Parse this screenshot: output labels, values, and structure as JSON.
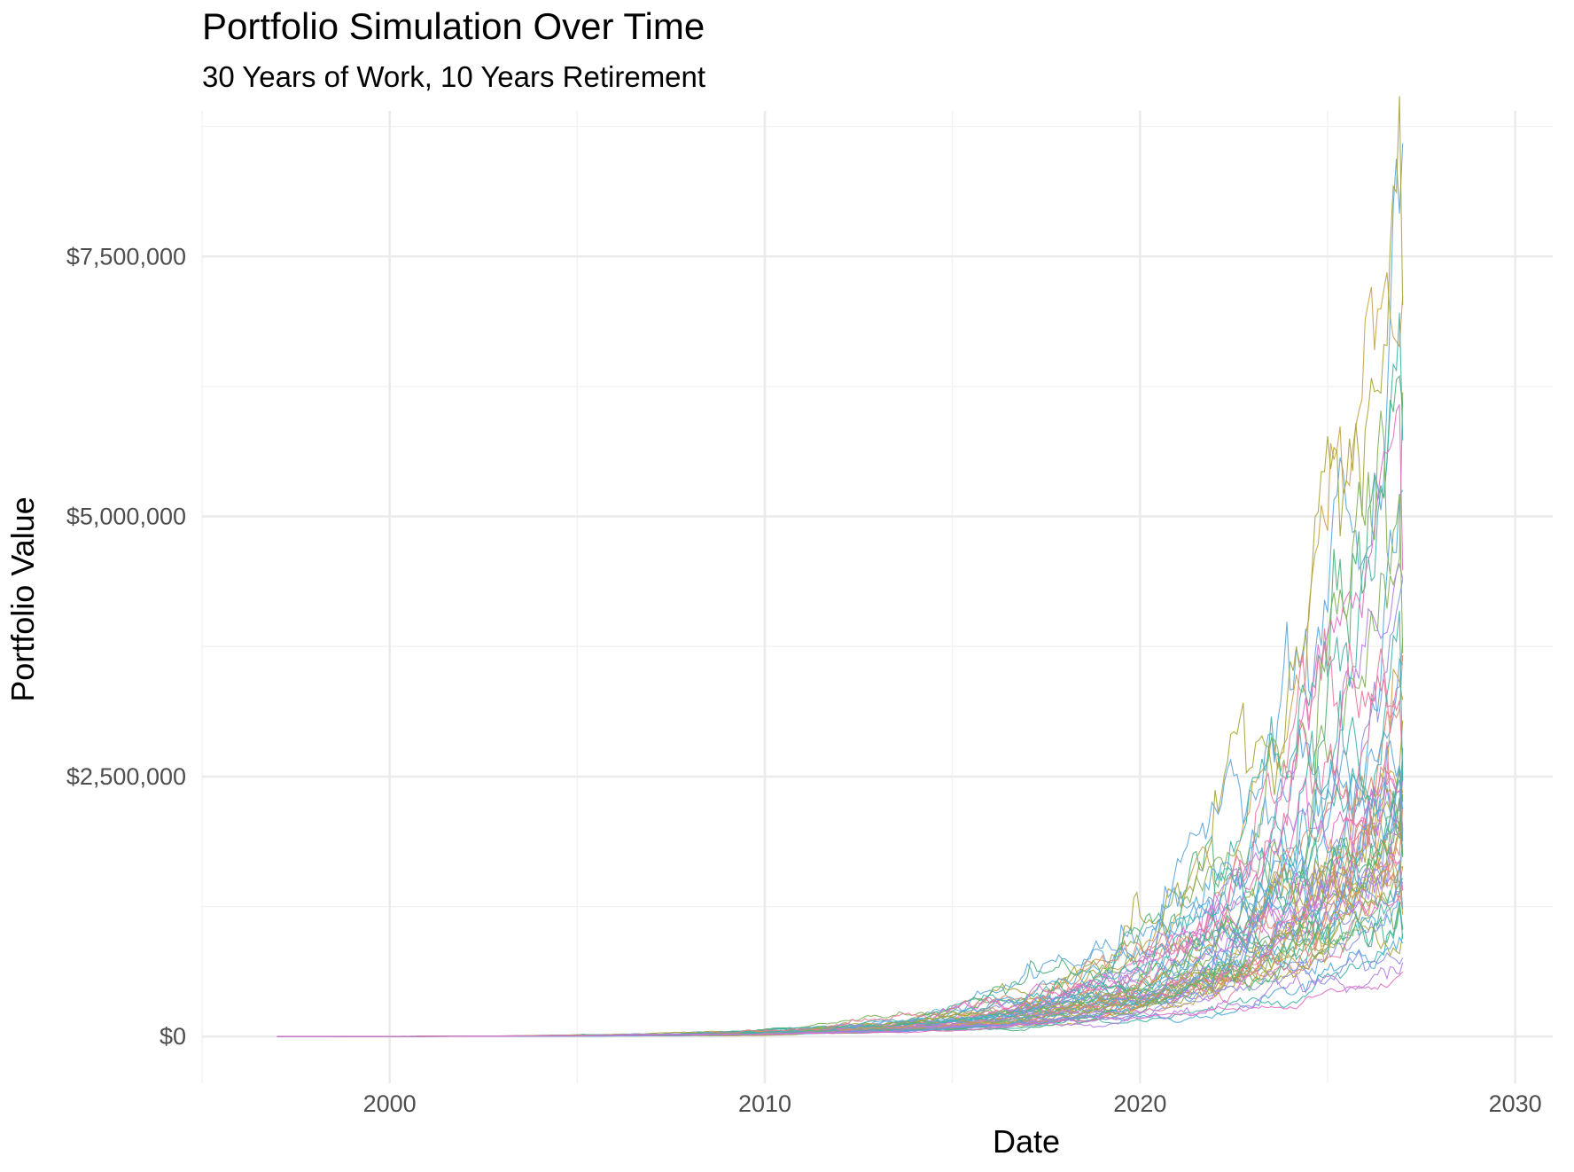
{
  "chart_data": {
    "type": "line",
    "title": "Portfolio Simulation Over Time",
    "subtitle": "30 Years of Work, 10 Years Retirement",
    "xlabel": "Date",
    "ylabel": "Portfolio Value",
    "x_start": 1997,
    "x_end": 2027,
    "xlim": [
      1995,
      2031
    ],
    "ylim": [
      -450000,
      8900000
    ],
    "x_ticks": [
      2000,
      2010,
      2020,
      2030
    ],
    "x_tick_labels": [
      "2000",
      "2010",
      "2020",
      "2030"
    ],
    "y_ticks": [
      0,
      2500000,
      5000000,
      7500000
    ],
    "y_tick_labels": [
      "$0",
      "$2,500,000",
      "$5,000,000",
      "$7,500,000"
    ],
    "grid": true,
    "legend": "none",
    "final_values": [
      8450000,
      7050000,
      6800000,
      6500000,
      6200000,
      5400000,
      4900000,
      4500000,
      4300000,
      4100000,
      3900000,
      3700000,
      3500000,
      3350000,
      3200000,
      3100000,
      3000000,
      2900000,
      2800000,
      2700000,
      2600000,
      2500000,
      2450000,
      2400000,
      2350000,
      2300000,
      2250000,
      2200000,
      2150000,
      2100000,
      2050000,
      2000000,
      1950000,
      1900000,
      1850000,
      1800000,
      1750000,
      1700000,
      1650000,
      1600000,
      1550000,
      1500000,
      1450000,
      1400000,
      1350000,
      1300000,
      1250000,
      1200000,
      1150000,
      1100000,
      1050000,
      1000000,
      950000,
      900000,
      850000,
      800000,
      750000,
      620000
    ],
    "series_colors": [
      "#5DA5DA",
      "#C9A24A",
      "#A8A43A",
      "#7FB05A",
      "#4FB07A",
      "#3FB3A8",
      "#4FA8D8",
      "#8A8FE0",
      "#B57CE0",
      "#E06FC8",
      "#E8789C",
      "#D98A6A"
    ]
  }
}
